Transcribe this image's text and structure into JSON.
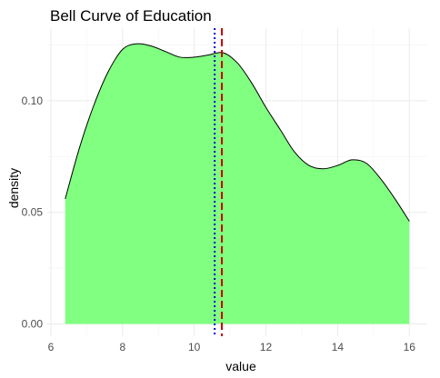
{
  "chart_data": {
    "type": "area",
    "title": "Bell Curve of Education",
    "xlabel": "value",
    "ylabel": "density",
    "xlim": [
      5.9,
      16.5
    ],
    "ylim": [
      -0.0055,
      0.1325
    ],
    "x_ticks": [
      6,
      8,
      10,
      12,
      14,
      16
    ],
    "y_ticks": [
      0.0,
      0.05,
      0.1
    ],
    "y_tick_labels": [
      "0.00",
      "0.05",
      "0.10"
    ],
    "grid": true,
    "fill_color": "#80FF80",
    "line_color": "#000000",
    "series": [
      {
        "x": [
          6.4,
          6.8,
          7.2,
          7.6,
          8.0,
          8.4,
          8.8,
          9.2,
          9.6,
          10.0,
          10.4,
          10.8,
          11.2,
          11.6,
          12.0,
          12.4,
          12.8,
          13.2,
          13.6,
          14.0,
          14.4,
          14.8,
          15.2,
          15.6,
          16.0
        ],
        "y": [
          0.056,
          0.079,
          0.098,
          0.113,
          0.123,
          0.1255,
          0.1245,
          0.122,
          0.1195,
          0.1195,
          0.1205,
          0.1215,
          0.117,
          0.108,
          0.097,
          0.087,
          0.077,
          0.071,
          0.0695,
          0.071,
          0.0735,
          0.072,
          0.065,
          0.056,
          0.046
        ]
      }
    ],
    "reference_lines": [
      {
        "x": 10.57,
        "color": "#0000CC",
        "style": "dotted"
      },
      {
        "x": 10.77,
        "color": "#CC0000",
        "style": "dashed"
      }
    ]
  }
}
